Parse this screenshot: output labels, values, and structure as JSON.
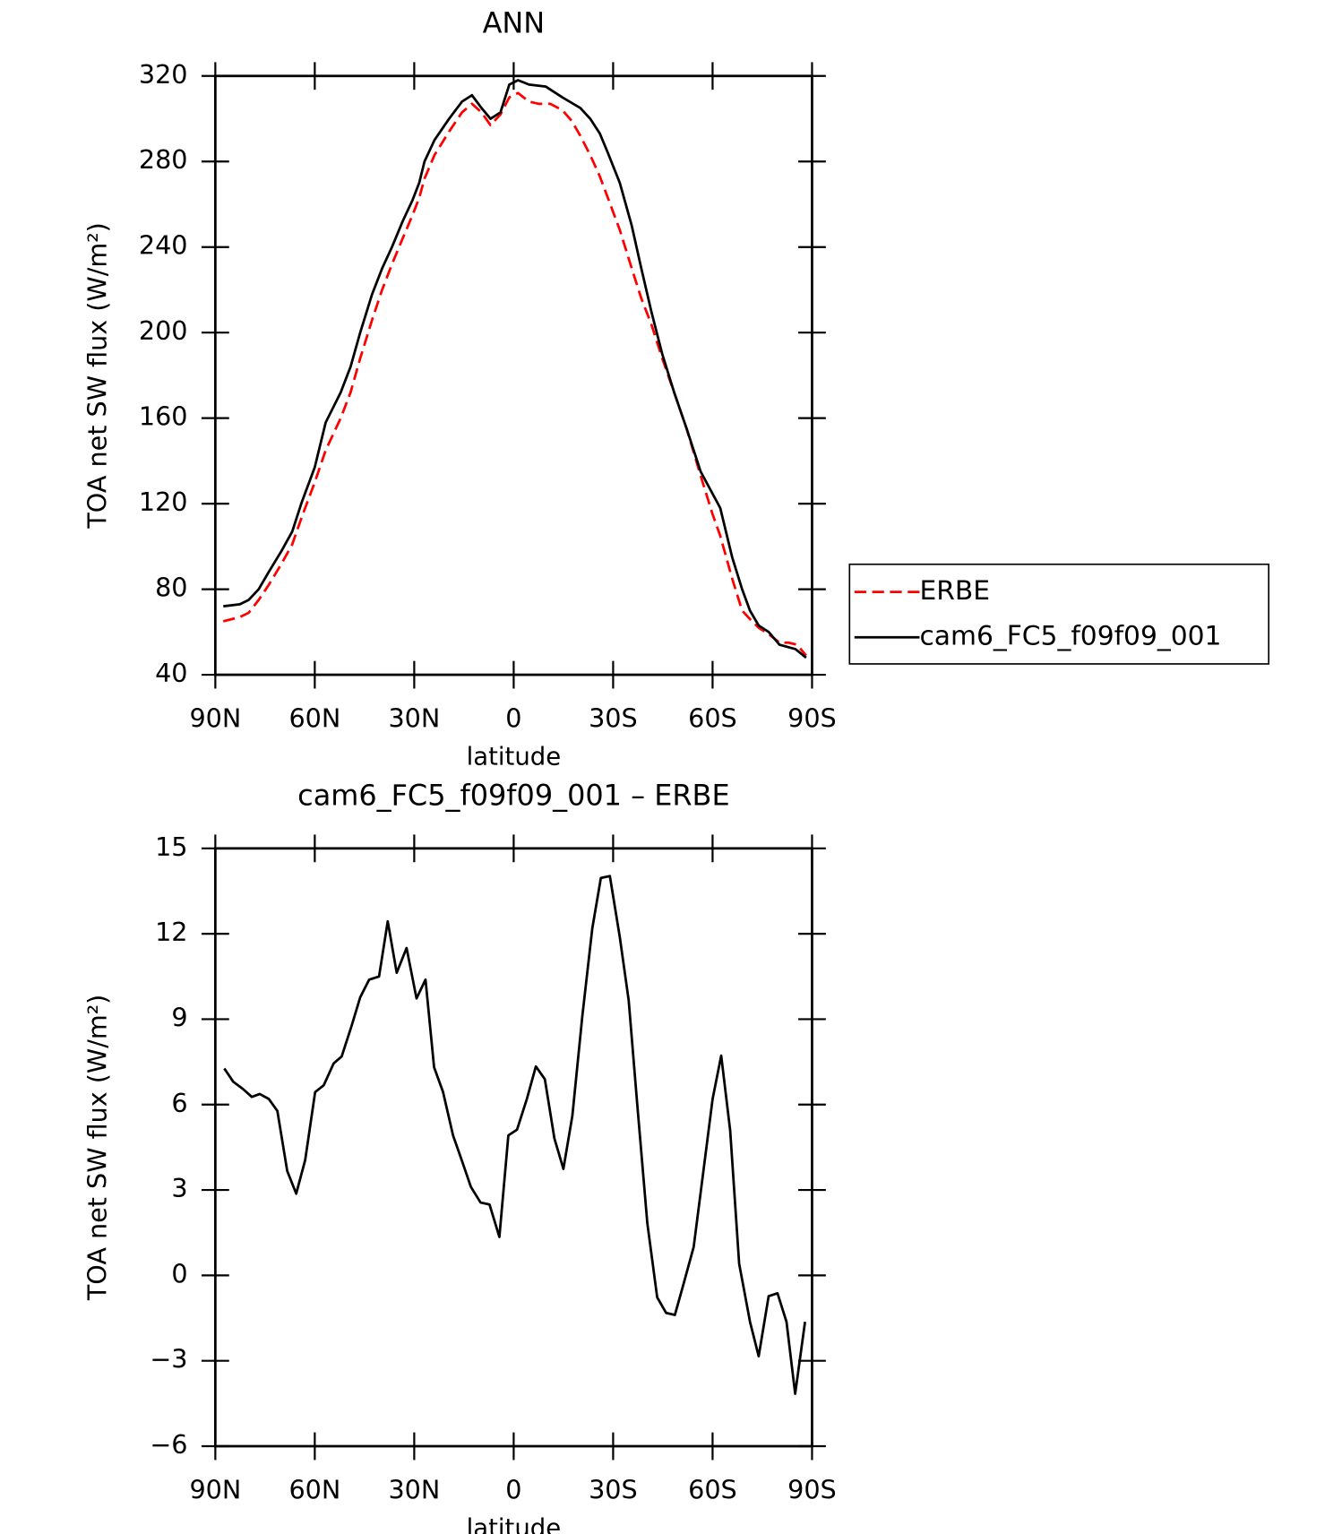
{
  "chart_data": [
    {
      "type": "line",
      "title": "ANN",
      "xlabel": "latitude",
      "ylabel": "TOA net SW flux (W/m²)",
      "xlim": [
        90,
        -90
      ],
      "xticks": [
        {
          "value": 90,
          "label": "90N"
        },
        {
          "value": 60,
          "label": "60N"
        },
        {
          "value": 30,
          "label": "30N"
        },
        0,
        {
          "value": -30,
          "label": "30S"
        },
        {
          "value": -60,
          "label": "60S"
        },
        {
          "value": -90,
          "label": "90S"
        }
      ],
      "ylim": [
        40,
        320
      ],
      "yticks": [
        40,
        80,
        120,
        160,
        200,
        240,
        280,
        320
      ],
      "legend": "outside right",
      "series": [
        {
          "name": "ERBE",
          "color": "#ff0000",
          "dash": true,
          "x": [
            87.6,
            82.6,
            79.9,
            76.9,
            73.9,
            70,
            66.8,
            64.1,
            60,
            56.7,
            52.2,
            49.2,
            46.3,
            42.7,
            39.7,
            36.7,
            33.5,
            30.5,
            28.5,
            26.9,
            23.9,
            19.5,
            15.6,
            12.6,
            9.7,
            7.0,
            4.0,
            1.3,
            -1.3,
            -4.6,
            -7.5,
            -11,
            -14.7,
            -17.5,
            -20.1,
            -23.1,
            -26,
            -28.4,
            -32,
            -35.6,
            -38.5,
            -41.5,
            -44.8,
            -48.4,
            -52.2,
            -56.4,
            -60,
            -62.3,
            -65.9,
            -68.9,
            -71.3,
            -73.9,
            -76.9,
            -80.2,
            -83,
            -85.5,
            -88.2
          ],
          "values": [
            65,
            67,
            69,
            75,
            82,
            92,
            101,
            113,
            130,
            145,
            160,
            172,
            188,
            206,
            220,
            232,
            244,
            255,
            263,
            272,
            283,
            294,
            303,
            307,
            303,
            297,
            302,
            310,
            312,
            308,
            307,
            307,
            304,
            299,
            292,
            283,
            273,
            263,
            248,
            230,
            216,
            204,
            188,
            172,
            155,
            133,
            115,
            105,
            85,
            70,
            66,
            62,
            59,
            55,
            55,
            54,
            49
          ]
        },
        {
          "name": "cam6_FC5_f09f09_001",
          "color": "#000000",
          "dash": false,
          "x": [
            87.6,
            82.6,
            79.9,
            76.9,
            73.9,
            70,
            66.8,
            64.1,
            60,
            56.7,
            52.2,
            49.2,
            46.3,
            42.7,
            39.7,
            36.7,
            33.5,
            30.5,
            28.5,
            26.9,
            23.9,
            19.5,
            15.6,
            12.6,
            9.7,
            7.0,
            4.0,
            1.3,
            -1.3,
            -4.6,
            -9.7,
            -14.7,
            -20.1,
            -23.1,
            -26,
            -28.4,
            -32,
            -35.6,
            -38.5,
            -41.5,
            -44.8,
            -48.4,
            -52.2,
            -56.4,
            -62.3,
            -65.9,
            -68.9,
            -71.3,
            -73.9,
            -76.9,
            -80.2,
            -85,
            -88.2
          ],
          "values": [
            72,
            73,
            75,
            80,
            88,
            98,
            107,
            120,
            137,
            158,
            172,
            184,
            200,
            218,
            230,
            240,
            252,
            262,
            270,
            280,
            290,
            300,
            308,
            311,
            305,
            300,
            303,
            316,
            318,
            316,
            315,
            310,
            305,
            300,
            293,
            284,
            270,
            250,
            230,
            210,
            190,
            172,
            155,
            135,
            118,
            95,
            80,
            70,
            63,
            60,
            54,
            52,
            48
          ]
        }
      ]
    },
    {
      "type": "line",
      "title": "cam6_FC5_f09f09_001 – ERBE",
      "xlabel": "latitude",
      "ylabel": "TOA net SW flux (W/m²)",
      "xlim": [
        90,
        -90
      ],
      "xticks": [
        {
          "value": 90,
          "label": "90N"
        },
        {
          "value": 60,
          "label": "60N"
        },
        {
          "value": 30,
          "label": "30N"
        },
        0,
        {
          "value": -30,
          "label": "30S"
        },
        {
          "value": -60,
          "label": "60S"
        },
        {
          "value": -90,
          "label": "90S"
        }
      ],
      "ylim": [
        -6,
        15
      ],
      "yticks": [
        {
          "value": -6,
          "label": "−6"
        },
        {
          "value": -3,
          "label": "−3"
        },
        0,
        3,
        6,
        9,
        12,
        15
      ],
      "color": "#000000",
      "x": [
        87.3,
        84.6,
        81.7,
        79,
        76.6,
        73.9,
        71.3,
        68.3,
        65.6,
        62.9,
        59.9,
        57.3,
        54.3,
        51.9,
        48.9,
        46.3,
        43.6,
        40.6,
        38,
        35.3,
        32.3,
        29.3,
        26.6,
        24,
        21.3,
        18.3,
        15.6,
        12.9,
        10,
        7.3,
        4.3,
        1.6,
        -1,
        -4,
        -6.7,
        -9.4,
        -12.3,
        -15,
        -17.7,
        -20.7,
        -23.7,
        -26.3,
        -29,
        -32,
        -34.7,
        -37.3,
        -40.3,
        -43.3,
        -46,
        -48.6,
        -51.3,
        -54.3,
        -57,
        -60,
        -62.6,
        -65.3,
        -68,
        -71.3,
        -73.9,
        -76.9,
        -79.6,
        -82.3,
        -84.9,
        -87.9
      ],
      "values": [
        7.27,
        6.8,
        6.55,
        6.27,
        6.37,
        6.2,
        5.78,
        3.67,
        2.87,
        4.05,
        6.44,
        6.68,
        7.45,
        7.69,
        8.76,
        9.77,
        10.39,
        10.5,
        12.44,
        10.63,
        11.5,
        9.73,
        10.39,
        7.31,
        6.44,
        4.92,
        4.02,
        3.11,
        2.56,
        2.49,
        1.35,
        4.92,
        5.12,
        6.2,
        7.34,
        6.89,
        4.81,
        3.74,
        5.61,
        9.11,
        12.19,
        13.96,
        14.03,
        11.88,
        9.66,
        5.96,
        1.83,
        -0.77,
        -1.32,
        -1.39,
        -0.28,
        1.0,
        3.46,
        6.2,
        7.72,
        5.09,
        0.41,
        -1.63,
        -2.84,
        -0.73,
        -0.63,
        -1.63,
        -4.16,
        -1.63
      ]
    }
  ]
}
